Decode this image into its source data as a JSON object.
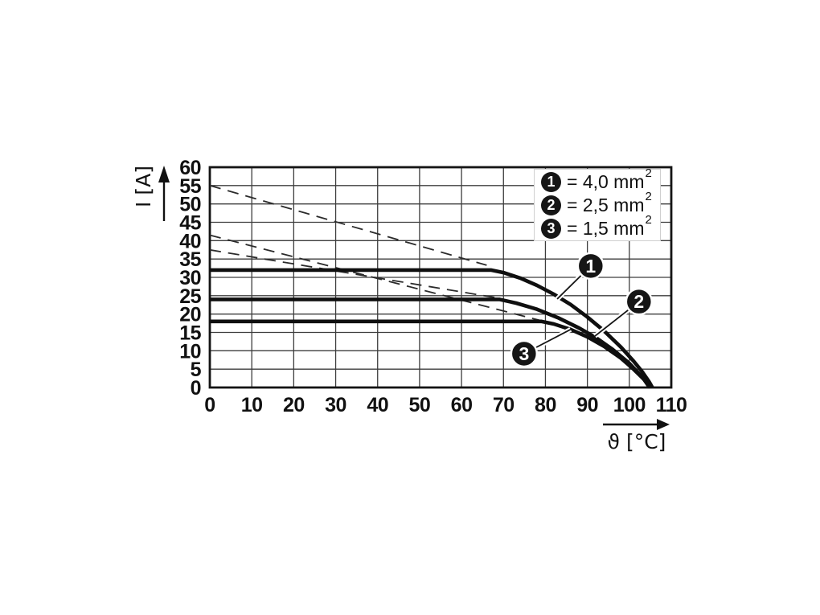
{
  "chart_data": {
    "type": "line",
    "xlabel": "ϑ [°C]",
    "ylabel": "I [A]",
    "xlim": [
      0,
      110
    ],
    "ylim": [
      0,
      60
    ],
    "x_ticks": [
      0,
      10,
      20,
      30,
      40,
      50,
      60,
      70,
      80,
      90,
      100,
      110
    ],
    "y_ticks": [
      0,
      5,
      10,
      15,
      20,
      25,
      30,
      35,
      40,
      45,
      50,
      55,
      60
    ],
    "grid": true,
    "legend_position": "top-right",
    "series": [
      {
        "id": "curve1",
        "name": "4,0 mm²",
        "style": "solid",
        "points": [
          [
            0,
            32
          ],
          [
            67,
            32
          ],
          [
            70,
            31.3
          ],
          [
            74,
            29.8
          ],
          [
            78,
            27.8
          ],
          [
            82,
            25.4
          ],
          [
            86,
            22.6
          ],
          [
            90,
            19.2
          ],
          [
            94,
            15.4
          ],
          [
            98,
            11
          ],
          [
            101,
            7.2
          ],
          [
            103,
            4.4
          ],
          [
            104.7,
            1.6
          ],
          [
            105.5,
            0
          ]
        ]
      },
      {
        "id": "curve2",
        "name": "2,5 mm²",
        "style": "solid",
        "points": [
          [
            0,
            24
          ],
          [
            69,
            24
          ],
          [
            73,
            23
          ],
          [
            78,
            21.3
          ],
          [
            83,
            19
          ],
          [
            88,
            16.2
          ],
          [
            92,
            13.6
          ],
          [
            96,
            10.4
          ],
          [
            100,
            6.6
          ],
          [
            102.8,
            3.2
          ],
          [
            105,
            0
          ]
        ]
      },
      {
        "id": "curve3",
        "name": "1,5 mm²",
        "style": "solid",
        "points": [
          [
            0,
            18
          ],
          [
            79,
            18
          ],
          [
            82,
            17.3
          ],
          [
            86,
            15.8
          ],
          [
            90,
            13.8
          ],
          [
            94,
            11.2
          ],
          [
            98,
            8
          ],
          [
            101,
            5
          ],
          [
            103.5,
            2.2
          ],
          [
            104.8,
            0
          ]
        ]
      }
    ],
    "guide_lines": [
      {
        "id": "dash1",
        "style": "dashed",
        "points": [
          [
            0,
            55
          ],
          [
            66,
            33.3
          ]
        ]
      },
      {
        "id": "dash2",
        "style": "dashed",
        "points": [
          [
            0,
            41.5
          ],
          [
            79,
            18.2
          ]
        ]
      },
      {
        "id": "dash3",
        "style": "dashed",
        "points": [
          [
            0,
            37.5
          ],
          [
            69,
            24.3
          ]
        ]
      }
    ],
    "callouts": [
      {
        "label": "1",
        "circle": [
          90.8,
          33.1
        ],
        "target": [
          82.8,
          24.1
        ]
      },
      {
        "label": "2",
        "circle": [
          102.3,
          23.4
        ],
        "target": [
          91.8,
          14.0
        ]
      },
      {
        "label": "3",
        "circle": [
          74.9,
          9.2
        ],
        "target": [
          86.0,
          15.8
        ]
      }
    ],
    "legend": {
      "items": [
        {
          "marker": "1",
          "text": "= 4,0 mm",
          "sup": "2"
        },
        {
          "marker": "2",
          "text": "= 2,5 mm",
          "sup": "2"
        },
        {
          "marker": "3",
          "text": "= 1,5 mm",
          "sup": "2"
        }
      ]
    }
  }
}
